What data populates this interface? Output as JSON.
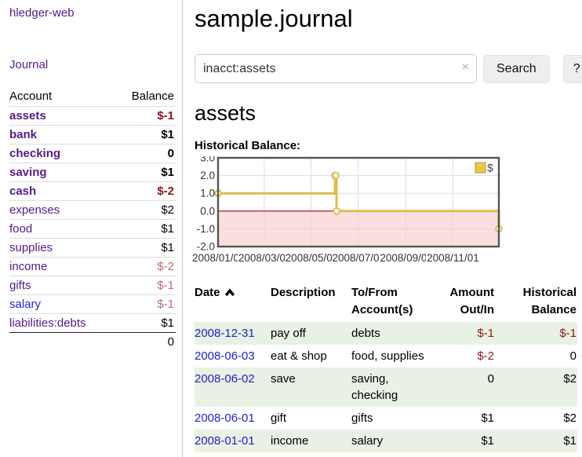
{
  "app": {
    "brand": "hledger-web",
    "nav_journal": "Journal"
  },
  "sidebar": {
    "header": {
      "account": "Account",
      "balance": "Balance"
    },
    "accounts": [
      {
        "name": "assets",
        "level": 1,
        "bold": true,
        "balance": "$-1",
        "negative": true,
        "blue": false
      },
      {
        "name": "bank",
        "level": 2,
        "bold": true,
        "balance": "$1",
        "negative": false,
        "blue": false
      },
      {
        "name": "checking",
        "level": 3,
        "bold": true,
        "balance": "0",
        "negative": false,
        "blue": false
      },
      {
        "name": "saving",
        "level": 3,
        "bold": true,
        "balance": "$1",
        "negative": false,
        "blue": false
      },
      {
        "name": "cash",
        "level": 2,
        "bold": true,
        "balance": "$-2",
        "negative": true,
        "blue": false
      },
      {
        "name": "expenses",
        "level": 1,
        "bold": false,
        "balance": "$2",
        "negative": false,
        "blue": false
      },
      {
        "name": "food",
        "level": 2,
        "bold": false,
        "balance": "$1",
        "negative": false,
        "blue": false
      },
      {
        "name": "supplies",
        "level": 2,
        "bold": false,
        "balance": "$1",
        "negative": false,
        "blue": false
      },
      {
        "name": "income",
        "level": 1,
        "bold": false,
        "balance": "$-2",
        "negative": true,
        "blue": false
      },
      {
        "name": "gifts",
        "level": 2,
        "bold": false,
        "balance": "$-1",
        "negative": true,
        "blue": false
      },
      {
        "name": "salary",
        "level": 2,
        "bold": false,
        "balance": "$-1",
        "negative": true,
        "blue": true
      },
      {
        "name": "liabilities:debts",
        "level": 1,
        "bold": false,
        "balance": "$1",
        "negative": false,
        "blue": false
      }
    ],
    "total": "0"
  },
  "header": {
    "title": "sample.journal"
  },
  "search": {
    "value": "inacct:assets",
    "clear_icon": "×",
    "button": "Search",
    "help_button": "?"
  },
  "account_page": {
    "heading": "assets",
    "chart_label": "Historical Balance:"
  },
  "chart_data": {
    "type": "line",
    "step": true,
    "title": "Historical Balance",
    "legend": "$",
    "legend_position": "top-right",
    "series": [
      {
        "name": "$",
        "points": [
          [
            "2008-01-01",
            1
          ],
          [
            "2008-06-01",
            2
          ],
          [
            "2008-06-02",
            2
          ],
          [
            "2008-06-03",
            0
          ],
          [
            "2008-12-31",
            -1
          ]
        ]
      }
    ],
    "xrange": [
      "2008-01-01",
      "2008-12-31"
    ],
    "ylim": [
      -2,
      3
    ],
    "ytick_labels": [
      "3.0",
      "2.0",
      "1.0",
      "0.0",
      "-1.0",
      "-2.0"
    ],
    "ytick_values": [
      3,
      2,
      1,
      0,
      -1,
      -2
    ],
    "xtick_labels": [
      "2008/01/01",
      "2008/03/01",
      "2008/05/01",
      "2008/07/01",
      "2008/09/01",
      "2008/11/01"
    ],
    "xtick_dates": [
      "2008-01-01",
      "2008-03-01",
      "2008-05-01",
      "2008-07-01",
      "2008-09-01",
      "2008-11-01"
    ],
    "grid": true
  },
  "register": {
    "columns": {
      "date": "Date",
      "description": "Description",
      "account_line1": "To/From",
      "account_line2": "Account(s)",
      "amount_line1": "Amount",
      "amount_line2": "Out/In",
      "balance_line1": "Historical",
      "balance_line2": "Balance"
    },
    "rows": [
      {
        "date": "2008-12-31",
        "description": "pay off",
        "accounts": "debts",
        "amount": "$-1",
        "amount_negative": true,
        "balance": "$-1",
        "balance_negative": true
      },
      {
        "date": "2008-06-03",
        "description": "eat & shop",
        "accounts": "food, supplies",
        "amount": "$-2",
        "amount_negative": true,
        "balance": "0",
        "balance_negative": false
      },
      {
        "date": "2008-06-02",
        "description": "save",
        "accounts": "saving, checking",
        "amount": "0",
        "amount_negative": false,
        "balance": "$2",
        "balance_negative": false
      },
      {
        "date": "2008-06-01",
        "description": "gift",
        "accounts": "gifts",
        "amount": "$1",
        "amount_negative": false,
        "balance": "$2",
        "balance_negative": false
      },
      {
        "date": "2008-01-01",
        "description": "income",
        "accounts": "salary",
        "amount": "$1",
        "amount_negative": false,
        "balance": "$1",
        "balance_negative": false
      }
    ]
  },
  "colors": {
    "link_purple": "#551a8b",
    "link_blue": "#2222dd",
    "date_link_blue": "#2222cc",
    "negative_bold_red": "#8b1515",
    "negative_muted_red": "#bd6b70",
    "table_negative_red": "#8b1a1a",
    "row_stripe_green": "#e8f1e3",
    "chart_line_gold": "#dcbd4d",
    "legend_swatch_gold": "#e8c84f",
    "chart_negative_fill_pink": "#fbdee0",
    "zero_line_dark_red": "#990000",
    "grid_gray": "#dcdcdc",
    "chart_border_gray": "#555555",
    "button_bg": "#eeeeee"
  }
}
